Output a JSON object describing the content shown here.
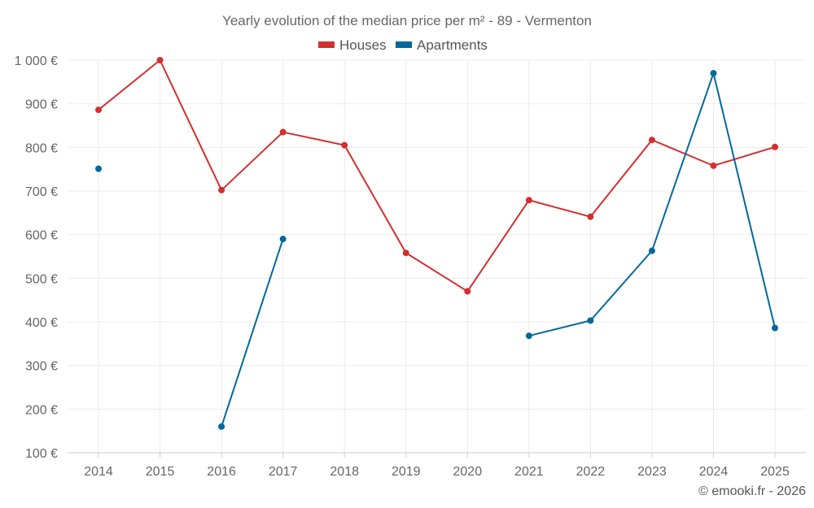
{
  "chart_data": {
    "type": "line",
    "title": "Yearly evolution of the median price per m² - 89 - Vermenton",
    "categories": [
      "2014",
      "2015",
      "2016",
      "2017",
      "2018",
      "2019",
      "2020",
      "2021",
      "2022",
      "2023",
      "2024",
      "2025"
    ],
    "ylim": [
      100,
      1000
    ],
    "yticks": [
      100,
      200,
      300,
      400,
      500,
      600,
      700,
      800,
      900,
      1000
    ],
    "ytick_labels": [
      "100 €",
      "200 €",
      "300 €",
      "400 €",
      "500 €",
      "600 €",
      "700 €",
      "800 €",
      "900 €",
      "1 000 €"
    ],
    "legend_position": "top-center",
    "grid": true,
    "series": [
      {
        "name": "Houses",
        "color": "#d32f2f",
        "values": [
          886,
          1000,
          702,
          835,
          805,
          558,
          470,
          679,
          641,
          817,
          758,
          801
        ]
      },
      {
        "name": "Apartments",
        "color": "#01699a",
        "values": [
          751,
          null,
          160,
          590,
          null,
          null,
          null,
          368,
          403,
          563,
          970,
          386
        ]
      }
    ],
    "credit": "© emooki.fr - 2026"
  }
}
